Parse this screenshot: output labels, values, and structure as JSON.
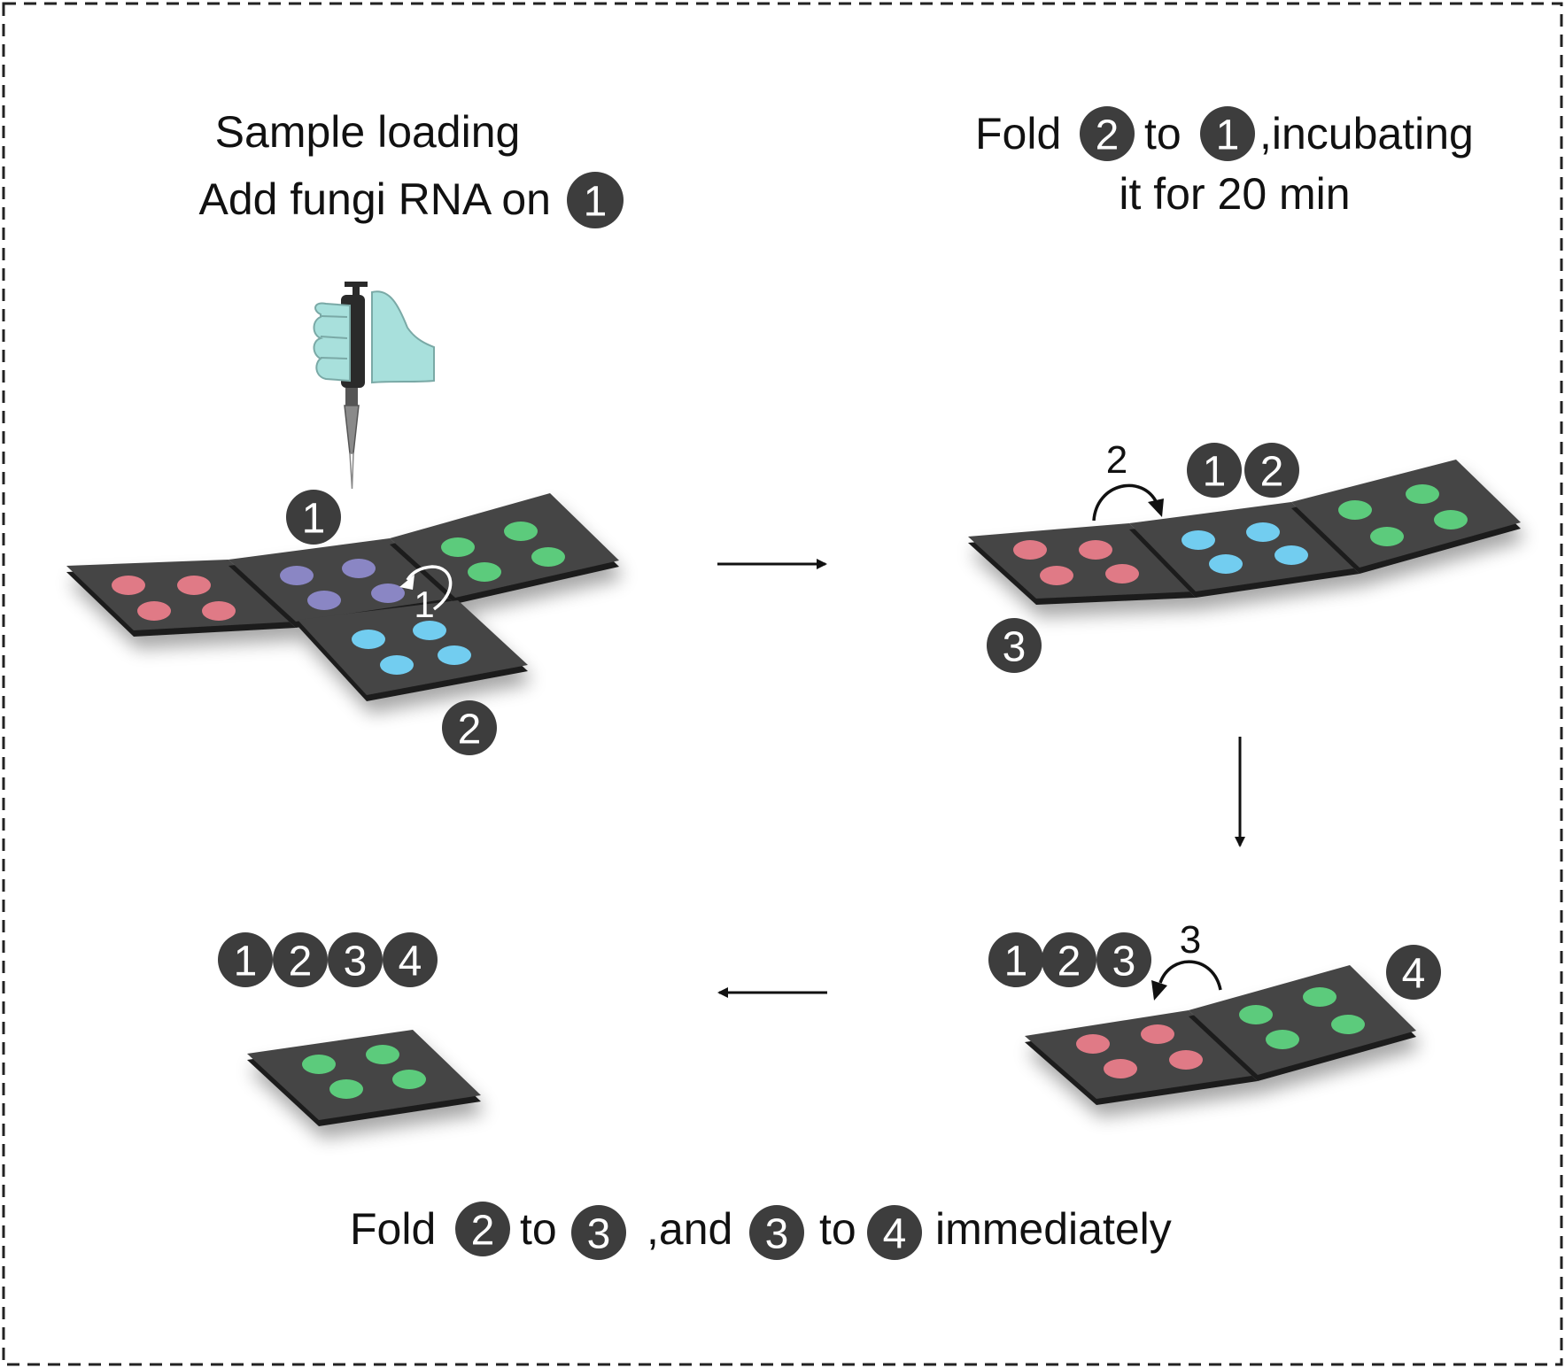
{
  "colors": {
    "badge": "#3d3d3d",
    "panel": "#444444",
    "panel_edge": "#1e1e1e",
    "dot_red": "#e07a86",
    "dot_purple": "#8a86c4",
    "dot_green": "#5ccb7c",
    "dot_blue": "#72cdf0",
    "glove": "#a8e0dc",
    "arrow": "#111111"
  },
  "step1": {
    "title_line1": "Sample loading",
    "title_line2_prefix": "Add fungi RNA on",
    "title_badge": "1",
    "badge_1": "1",
    "badge_2": "2",
    "fold_arrow_label": "1",
    "pipette_icon": "pipette-in-gloved-hand-icon"
  },
  "step2": {
    "title_line1_prefix": "Fold",
    "title_badge_a": "2",
    "title_middle": "to",
    "title_badge_b": "1",
    "title_line1_suffix": ",incubating",
    "title_line2": "it for 20 min",
    "fold_arrow_label": "2",
    "badge_top_a": "1",
    "badge_top_b": "2",
    "badge_3": "3"
  },
  "step3": {
    "badge_a": "1",
    "badge_b": "2",
    "badge_c": "3",
    "fold_arrow_label": "3",
    "badge_4": "4"
  },
  "step4": {
    "badge_a": "1",
    "badge_b": "2",
    "badge_c": "3",
    "badge_d": "4"
  },
  "bottom_caption": {
    "w1": "Fold",
    "b1": "2",
    "w2": "to",
    "b2": "3",
    "w3": ",and",
    "b3": "3",
    "w4": "to",
    "b4": "4",
    "w5": "immediately"
  }
}
